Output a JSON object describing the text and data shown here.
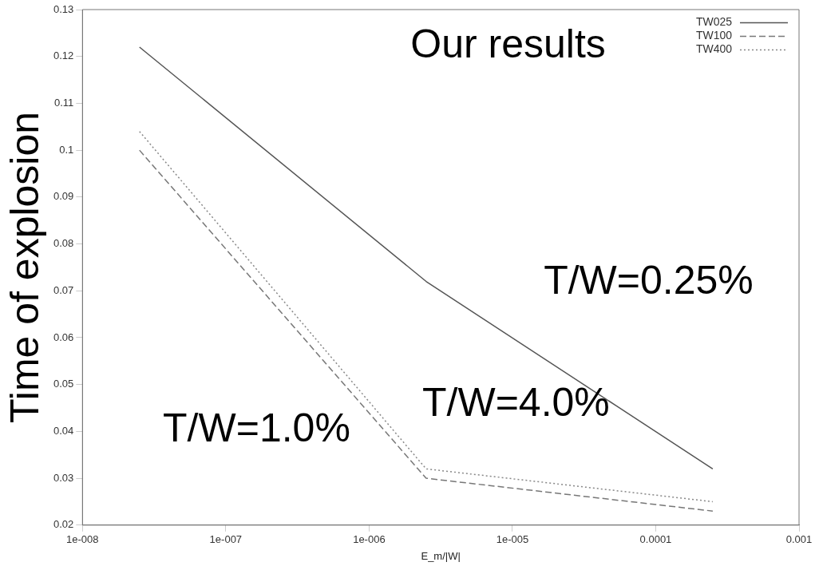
{
  "chart_data": {
    "type": "line",
    "title": "Our results",
    "xlabel": "E_m/|W|",
    "ylabel": "Time of explosion",
    "x": [
      2.5e-08,
      2.5e-06,
      0.00025
    ],
    "series": [
      {
        "name": "TW025",
        "color": "#555555",
        "line_style": "solid",
        "values": [
          0.122,
          0.072,
          0.032
        ]
      },
      {
        "name": "TW100",
        "color": "#777777",
        "line_style": "dashed",
        "values": [
          0.1,
          0.03,
          0.023
        ]
      },
      {
        "name": "TW400",
        "color": "#888888",
        "line_style": "dotted",
        "values": [
          0.104,
          0.032,
          0.025
        ]
      }
    ],
    "log": "x",
    "xlim": [
      1e-08,
      0.001
    ],
    "xticks": [
      {
        "value": 1e-08,
        "label": "1e-008"
      },
      {
        "value": 1e-07,
        "label": "1e-007"
      },
      {
        "value": 1e-06,
        "label": "1e-006"
      },
      {
        "value": 1e-05,
        "label": "1e-005"
      },
      {
        "value": 0.0001,
        "label": "0.0001"
      },
      {
        "value": 0.001,
        "label": "0.001"
      }
    ],
    "ylim": [
      0.02,
      0.13
    ],
    "yticks": [
      0.02,
      0.03,
      0.04,
      0.05,
      0.06,
      0.07,
      0.08,
      0.09,
      0.1,
      0.11,
      0.12,
      0.13
    ],
    "grid": false,
    "legend": "top right",
    "marker": "none",
    "annotations": [
      "T/W=0.25%",
      "T/W=4.0%",
      "T/W=1.0%"
    ]
  }
}
